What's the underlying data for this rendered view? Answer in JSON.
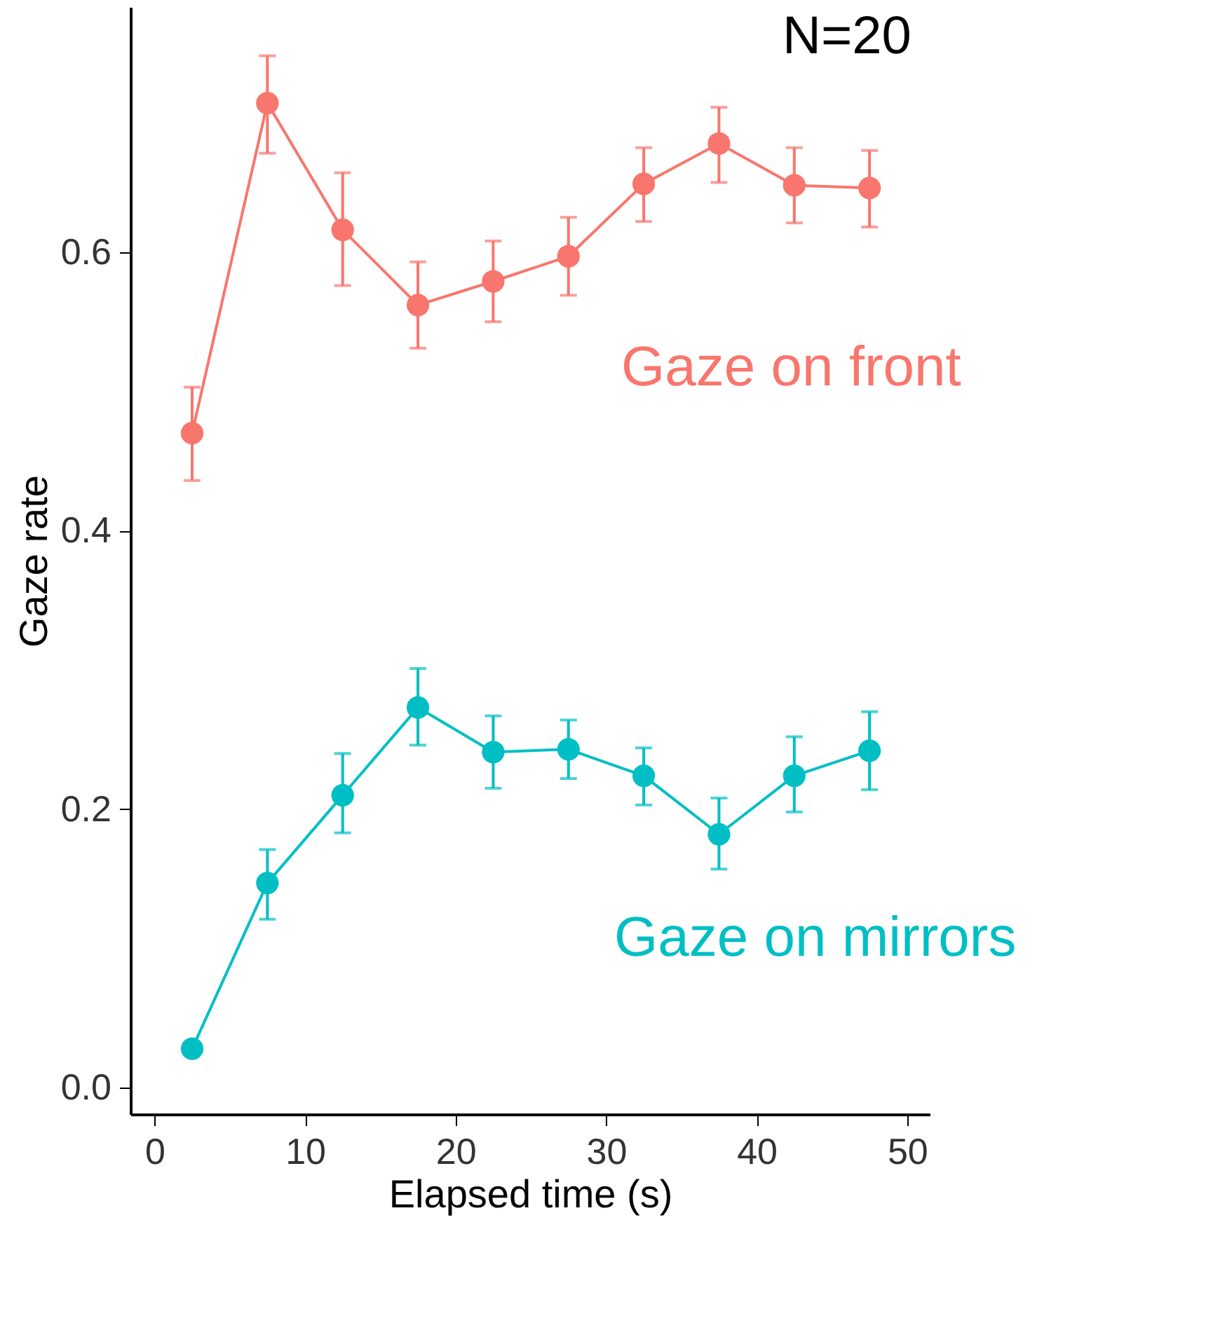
{
  "chart_data": {
    "type": "line",
    "xlabel": "Elapsed time (s)",
    "ylabel": "Gaze rate",
    "annotations": [
      "N=20"
    ],
    "x": [
      2.5,
      7.5,
      12.5,
      17.5,
      22.5,
      27.5,
      32.5,
      37.5,
      42.5,
      47.5
    ],
    "series": [
      {
        "name": "Gaze on front",
        "color": "#f8766d",
        "values": [
          0.47,
          0.707,
          0.616,
          0.562,
          0.579,
          0.597,
          0.649,
          0.678,
          0.648,
          0.646
        ],
        "errors": [
          [
            0.436,
            0.503
          ],
          [
            0.671,
            0.741
          ],
          [
            0.576,
            0.657
          ],
          [
            0.531,
            0.593
          ],
          [
            0.55,
            0.608
          ],
          [
            0.569,
            0.625
          ],
          [
            0.622,
            0.675
          ],
          [
            0.65,
            0.704
          ],
          [
            0.621,
            0.675
          ],
          [
            0.618,
            0.673
          ]
        ]
      },
      {
        "name": "Gaze on mirrors",
        "color": "#00bfc4",
        "values": [
          0.028,
          0.147,
          0.21,
          0.273,
          0.241,
          0.243,
          0.224,
          0.182,
          0.224,
          0.242
        ],
        "errors": [
          null,
          [
            0.121,
            0.171
          ],
          [
            0.183,
            0.24
          ],
          [
            0.246,
            0.301
          ],
          [
            0.215,
            0.267
          ],
          [
            0.222,
            0.264
          ],
          [
            0.203,
            0.244
          ],
          [
            0.157,
            0.208
          ],
          [
            0.198,
            0.252
          ],
          [
            0.214,
            0.27
          ]
        ]
      }
    ],
    "xlim": [
      -1.6,
      51.5
    ],
    "xticks": [
      0,
      10,
      20,
      30,
      40,
      50
    ],
    "ylim": [
      -0.019,
      0.776
    ],
    "yticks": [
      {
        "value": 0,
        "label": "0.0"
      },
      0.2,
      0.4,
      0.6
    ],
    "grid": false,
    "legend": false,
    "marker": "circle",
    "line_style": "solid"
  }
}
